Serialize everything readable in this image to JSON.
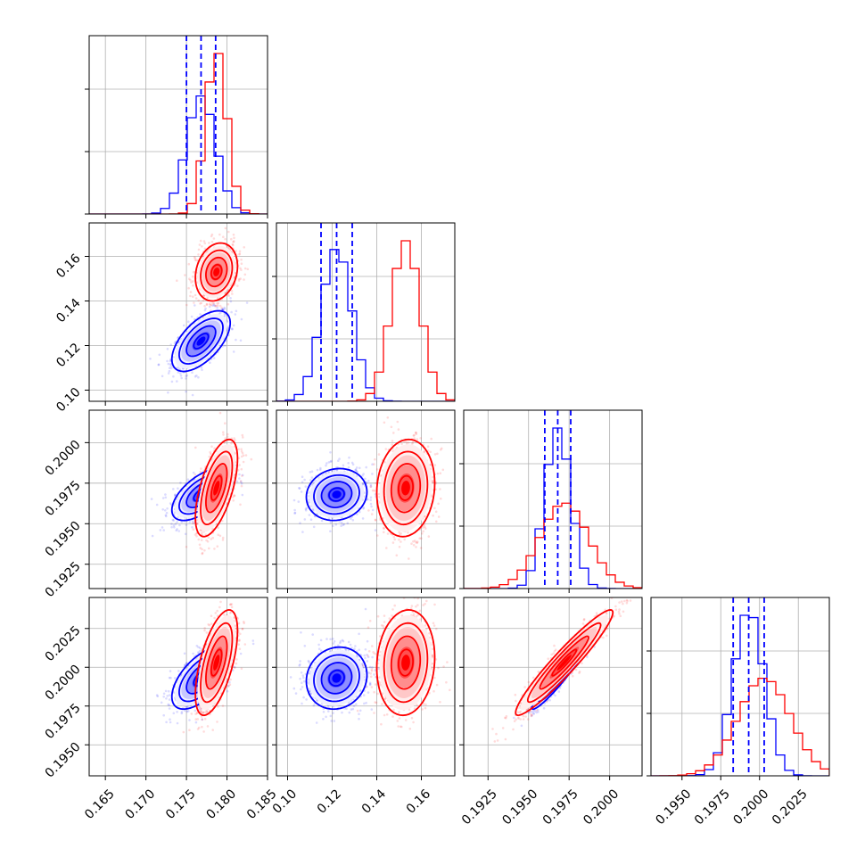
{
  "chart_data": {
    "type": "corner",
    "grid": true,
    "series": [
      {
        "color": "#0000ff",
        "means": [
          0.1768,
          0.122,
          0.1968,
          0.1993
        ],
        "sds": [
          0.0018,
          0.0068,
          0.0008,
          0.001
        ],
        "quantiles_dashed": [
          [
            0.175,
            0.1768,
            0.1786
          ],
          [
            0.115,
            0.122,
            0.129
          ],
          [
            0.196,
            0.1968,
            0.1976
          ],
          [
            0.1983,
            0.1993,
            0.2003
          ]
        ],
        "correlations": [
          [
            0,
            1,
            0.6
          ],
          [
            0,
            2,
            0.6
          ],
          [
            0,
            3,
            0.6
          ],
          [
            1,
            2,
            0.1
          ],
          [
            1,
            3,
            0.1
          ],
          [
            2,
            3,
            0.95
          ]
        ]
      },
      {
        "color": "#ff0000",
        "means": [
          0.1787,
          0.153,
          0.1972,
          0.2003
        ],
        "sds": [
          0.0013,
          0.0065,
          0.0015,
          0.0017
        ],
        "correlations": [
          [
            0,
            1,
            0.2
          ],
          [
            0,
            2,
            0.6
          ],
          [
            0,
            3,
            0.6
          ],
          [
            1,
            2,
            0.1
          ],
          [
            1,
            3,
            0.1
          ],
          [
            2,
            3,
            0.95
          ]
        ]
      }
    ],
    "axes": [
      {
        "range": [
          0.163,
          0.185
        ],
        "ticks": [
          0.165,
          0.17,
          0.175,
          0.18,
          0.185
        ],
        "tick_labels": [
          "0.165",
          "0.170",
          "0.175",
          "0.180",
          "0.185"
        ]
      },
      {
        "range": [
          0.095,
          0.175
        ],
        "ticks": [
          0.1,
          0.12,
          0.14,
          0.16
        ],
        "tick_labels": [
          "0.10",
          "0.12",
          "0.14",
          "0.16"
        ]
      },
      {
        "range": [
          0.191,
          0.202
        ],
        "ticks": [
          0.1925,
          0.195,
          0.1975,
          0.2
        ],
        "tick_labels": [
          "0.1925",
          "0.1950",
          "0.1975",
          "0.2000"
        ]
      },
      {
        "range": [
          0.193,
          0.2045
        ],
        "ticks": [
          0.195,
          0.1975,
          0.2,
          0.2025
        ],
        "tick_labels": [
          "0.1950",
          "0.1975",
          "0.2000",
          "0.2025"
        ]
      }
    ]
  }
}
